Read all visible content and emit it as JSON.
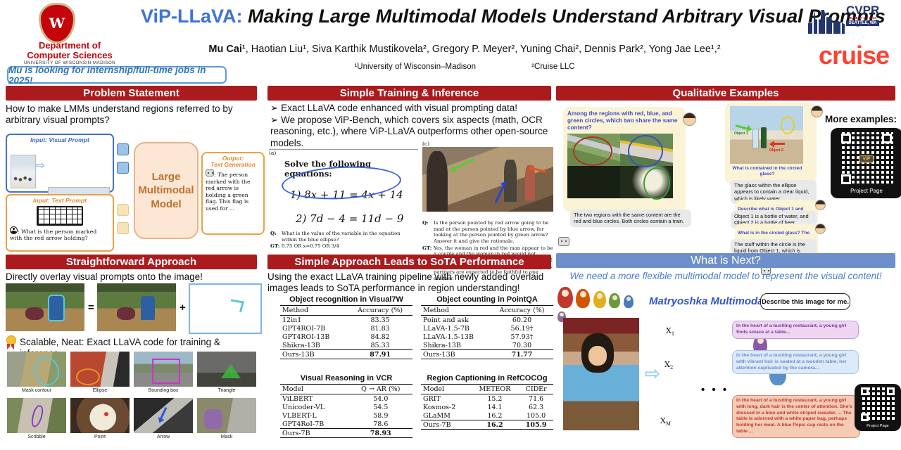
{
  "header": {
    "crest_letter": "W",
    "dept_line1": "Department of",
    "dept_line2": "Computer Sciences",
    "univ": "UNIVERSITY OF WISCONSIN-MADISON",
    "job_note": "Mu is  looking for internship/full-time jobs in 2025!",
    "title_prefix": "ViP-LLaVA:",
    "title_rest": " Making Large Multimodal Models Understand Arbitrary Visual Prompts",
    "authors_lead": "Mu Cai¹",
    "authors_rest": ", Haotian Liu¹, Siva Karthik Mustikovela², Gregory P. Meyer², Yuning Chai², Dennis Park², Yong Jae Lee¹,²",
    "affil1": "¹University of Wisconsin–Madison",
    "affil2": "²Cruise LLC",
    "cvpr_name": "CVPR",
    "cvpr_date": "JUNE 17-21, 2024",
    "cvpr_loc": "SEATTLE, WA",
    "cruise": "cruise"
  },
  "problem": {
    "title": "Problem Statement",
    "question": "How to make LMMs understand regions referred to by arbitrary visual prompts?",
    "visual_prompt_label": "Input: Visual Prompt",
    "text_prompt_label": "Input: Text Prompt",
    "text_prompt_q": ":  What is the person marked with the red arrow holding?",
    "lmm_label": "Large Multimodal Model",
    "output_label1": "Output:",
    "output_label2": "Text Generation",
    "output_text": ": The person marked with the red arrow is holding a green flag. This flag is used for ..."
  },
  "training": {
    "title": "Simple Training & Inference",
    "bullet_char": "➢",
    "bullet1": "Exact LLaVA code enhanced with visual prompting data!",
    "bullet2": "We propose ViP-Bench, which covers six aspects (math, OCR reasoning, etc.), where ViP-LLaVA outperforms other open-source models.",
    "fig_a": "(a)",
    "fig_c": "(c)",
    "solve_title": "Solve the following equations:",
    "eq1": "1)  8x + 11 = 4x + 14",
    "eq2": "2)  7d − 4 = 11d − 9",
    "q_label": "Q:",
    "gt_label": "GT:",
    "math_q": "What is the value of the variable in the equation within the blue ellipse?",
    "math_gt": "0.75 OR x=0.75 OR 3/4",
    "c_q": "Is the person pointed by red arrow going to be mad at the person pointed by blue arrow, for looking at the person pointed by green arrow? Answer it and give the rationale.",
    "c_gt": "Yes, the woman in red and the man appear to be a couple and the woman in red would not appreciate the man checking out other women.I think so because in a monogamous relationship, partners are expected to be faithful to one another."
  },
  "approach": {
    "title": "Straightforward Approach",
    "subtitle": "Directly overlay visual prompts onto the image!",
    "equals": "=",
    "plus": "+",
    "badge_text": "Scalable, Neat: Exact LLaVA code for training & inference",
    "grid": [
      "Mask contour",
      "Ellipse",
      "Bounding box",
      "Triangle",
      "Scribble",
      "Point",
      "Arrow",
      "Mask"
    ]
  },
  "sota": {
    "title": "Simple Approach Leads to SoTA Performance",
    "subtitle": "Using the exact LLaVA training pipeline with newly added overlaid images leads to SoTA performance in region understanding!",
    "tables": [
      {
        "title": "Object recognition in Visual7W",
        "headers": [
          "Method",
          "Accuracy (%)"
        ],
        "rows": [
          [
            "12in1",
            "83.35"
          ],
          [
            "GPT4ROI-7B",
            "81.83"
          ],
          [
            "GPT4ROI-13B",
            "84.82"
          ],
          [
            "Shikra-13B",
            "85.33"
          ],
          [
            "Ours-13B",
            "87.91"
          ]
        ]
      },
      {
        "title": "Object counting in PointQA",
        "headers": [
          "Method",
          "Accuracy (%)"
        ],
        "rows": [
          [
            "Point and ask",
            "60.20"
          ],
          [
            "LLaVA-1.5-7B",
            "56.19†"
          ],
          [
            "LLaVA-1.5-13B",
            "57.93†"
          ],
          [
            "Shikra-13B",
            "70.30"
          ],
          [
            "Ours-13B",
            "71.77"
          ]
        ]
      },
      {
        "title": "Visual Reasoning in VCR",
        "headers": [
          "Model",
          "Q → AR (%)"
        ],
        "rows": [
          [
            "ViLBERT",
            "54.0"
          ],
          [
            "Unicoder-VL",
            "54.5"
          ],
          [
            "VLBERT-L",
            "58.9"
          ],
          [
            "GPT4RoI-7B",
            "78.6"
          ],
          [
            "Ours-7B",
            "78.93"
          ]
        ]
      },
      {
        "title": "Region Captioning in RefCOCOg",
        "headers": [
          "Model",
          "METEOR",
          "CIDEr"
        ],
        "rows": [
          [
            "GRIT",
            "15.2",
            "71.6"
          ],
          [
            "Kosmos-2",
            "14.1",
            "62.3"
          ],
          [
            "GLaMM",
            "16.2",
            "105.0"
          ],
          [
            "Ours-7B",
            "16.2",
            "105.9"
          ]
        ]
      }
    ]
  },
  "qualitative": {
    "title": "Qualitative Examples",
    "chat1_q": "Among the regions with red, blue, and green circles, which two share the same content?",
    "chat1_a": "The two regions with the same content are the red and blue circles. Both circles contain a train.",
    "chat2_q1": "What is contained in the circled glass?",
    "chat2_a1": "The glass within the ellipse appears to contain a clear liquid, which is likely water.",
    "chat2_q2": "Describe what is Object 1 and object 2 .",
    "chat2_a2": "Object 1 is a bottle of water, and Object 2 is a bottle of beer.",
    "chat2_q3": "What is in the circled glass? The stuff within the circle should belong to Object 1 or 2 ?",
    "chat2_a3": "The stuff within the circle is the liquid from Object 1, which is water.",
    "obj1": "Object 1",
    "obj2": "Object 2",
    "more_examples": "More examples:",
    "qr_badge": "ViP",
    "qr_label": "Project Page"
  },
  "what_next": {
    "title": "What is Next?",
    "subtitle": "We need a more flexible multimodal model to represent the visual content!",
    "mmm": "Matryoshka Multimodal Models",
    "describe_btn": "Describe this image for me.",
    "x": "X",
    "x1_sub": "1",
    "x2_sub": "2",
    "xm_sub": "M",
    "bubble1": "In the heart of a bustling restaurant, a young girl finds solace at a table...",
    "bubble2": "In the heart of a bustling restaurant, a young girl with vibrant hair is seated at a wooden table, her attention captivated by the camera...",
    "bubbleM": "In the heart of a bustling restaurant, a young girl with long, dark hair is the center of attention. She's dressed in a blue and white striped sweater, ... The table is adorned with a white paper bag, perhaps holding her meal. A blue Pepsi cup rests on the table ...",
    "dots": "• • •",
    "qr_label": "Project Page"
  }
}
